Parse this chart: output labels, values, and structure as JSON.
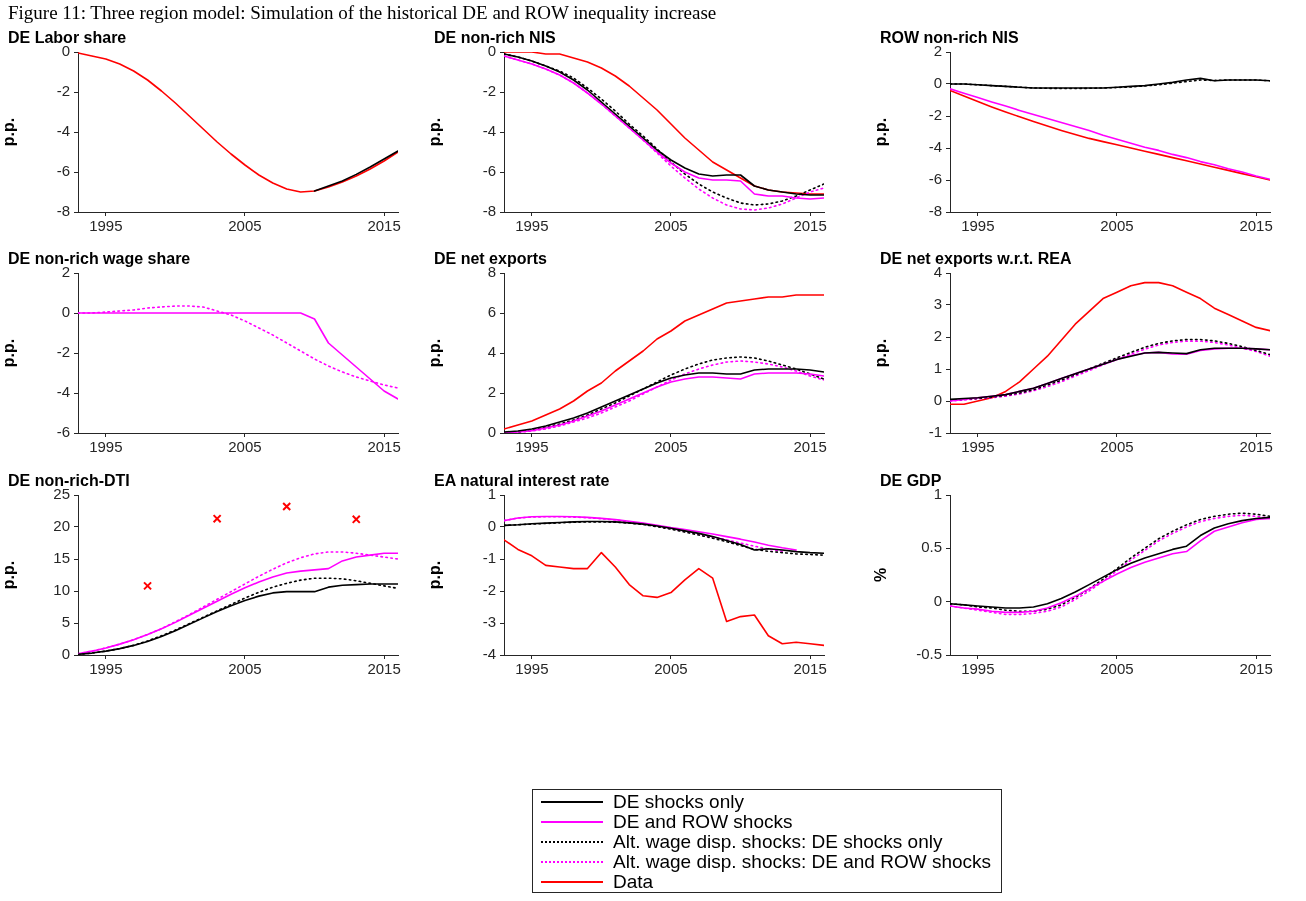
{
  "chart_data": [
    {
      "type": "line",
      "title": "DE Labor share",
      "ylabel": "p.p.",
      "annotations": [
        "Figure 11: Three region model: Simulation of the historical DE and ROW inequality increase"
      ],
      "x": [
        1993,
        1994,
        1995,
        1996,
        1997,
        1998,
        1999,
        2000,
        2001,
        2002,
        2003,
        2004,
        2005,
        2006,
        2007,
        2008,
        2009,
        2010,
        2011,
        2012,
        2013,
        2014,
        2015,
        2016
      ],
      "xlim": [
        1993,
        2016
      ],
      "xticks": [
        1995,
        2005,
        2015
      ],
      "ylim": [
        -8,
        0
      ],
      "yticks": [
        -8,
        -6,
        -4,
        -2,
        0
      ],
      "series": [
        {
          "color": "#000000",
          "values": [
            null,
            null,
            null,
            null,
            null,
            null,
            null,
            null,
            null,
            null,
            null,
            null,
            null,
            null,
            null,
            null,
            null,
            -6.95,
            -6.7,
            -6.45,
            -6.12,
            -5.75,
            -5.35,
            -4.95
          ]
        },
        {
          "color": "#ff0000",
          "values": [
            -0.05,
            -0.2,
            -0.35,
            -0.6,
            -0.95,
            -1.4,
            -1.95,
            -2.55,
            -3.2,
            -3.85,
            -4.5,
            -5.1,
            -5.65,
            -6.15,
            -6.55,
            -6.85,
            -7.0,
            -6.95,
            -6.75,
            -6.5,
            -6.2,
            -5.85,
            -5.45,
            -5.0
          ]
        }
      ]
    },
    {
      "type": "line",
      "title": "DE non-rich NIS",
      "ylabel": "p.p.",
      "x": [
        1993,
        1994,
        1995,
        1996,
        1997,
        1998,
        1999,
        2000,
        2001,
        2002,
        2003,
        2004,
        2005,
        2006,
        2007,
        2008,
        2009,
        2010,
        2011,
        2012,
        2013,
        2014,
        2015,
        2016
      ],
      "xlim": [
        1993,
        2016
      ],
      "xticks": [
        1995,
        2005,
        2015
      ],
      "ylim": [
        -8,
        0
      ],
      "yticks": [
        -8,
        -6,
        -4,
        -2,
        0
      ],
      "series": [
        {
          "color": "#000000",
          "values": [
            -0.1,
            -0.25,
            -0.45,
            -0.7,
            -1.0,
            -1.4,
            -1.9,
            -2.5,
            -3.1,
            -3.7,
            -4.3,
            -4.9,
            -5.4,
            -5.8,
            -6.1,
            -6.2,
            -6.15,
            -6.15,
            -6.7,
            -6.9,
            -7.0,
            -7.1,
            -7.15,
            -7.15
          ]
        },
        {
          "color": "#ff00ff",
          "values": [
            -0.2,
            -0.4,
            -0.6,
            -0.85,
            -1.15,
            -1.55,
            -2.05,
            -2.6,
            -3.2,
            -3.8,
            -4.4,
            -5.0,
            -5.55,
            -6.0,
            -6.3,
            -6.4,
            -6.4,
            -6.45,
            -7.1,
            -7.2,
            -7.2,
            -7.3,
            -7.35,
            -7.3
          ]
        },
        {
          "color": "#000000",
          "line_style": "dotted",
          "values": [
            -0.1,
            -0.25,
            -0.45,
            -0.7,
            -0.95,
            -1.3,
            -1.8,
            -2.35,
            -2.95,
            -3.6,
            -4.2,
            -4.85,
            -5.5,
            -6.1,
            -6.6,
            -7.0,
            -7.3,
            -7.55,
            -7.65,
            -7.6,
            -7.45,
            -7.2,
            -6.9,
            -6.6
          ]
        },
        {
          "color": "#ff00ff",
          "line_style": "dotted",
          "values": [
            -0.2,
            -0.4,
            -0.6,
            -0.85,
            -1.15,
            -1.55,
            -2.05,
            -2.6,
            -3.2,
            -3.8,
            -4.4,
            -5.05,
            -5.7,
            -6.3,
            -6.85,
            -7.3,
            -7.65,
            -7.85,
            -7.9,
            -7.8,
            -7.6,
            -7.3,
            -7.0,
            -6.8
          ]
        },
        {
          "color": "#ff0000",
          "values": [
            0,
            0,
            0,
            -0.1,
            -0.1,
            -0.3,
            -0.5,
            -0.8,
            -1.2,
            -1.7,
            -2.3,
            -2.9,
            -3.6,
            -4.3,
            -4.9,
            -5.5,
            -5.9,
            -6.3,
            -6.7,
            -6.9,
            -7.0,
            -7.05,
            -7.1,
            -7.1
          ]
        }
      ]
    },
    {
      "type": "line",
      "title": "ROW non-rich NIS",
      "ylabel": "p.p.",
      "x": [
        1993,
        1994,
        1995,
        1996,
        1997,
        1998,
        1999,
        2000,
        2001,
        2002,
        2003,
        2004,
        2005,
        2006,
        2007,
        2008,
        2009,
        2010,
        2011,
        2012,
        2013,
        2014,
        2015,
        2016
      ],
      "xlim": [
        1993,
        2016
      ],
      "xticks": [
        1995,
        2005,
        2015
      ],
      "ylim": [
        -8,
        2
      ],
      "yticks": [
        -8,
        -6,
        -4,
        -2,
        0,
        2
      ],
      "series": [
        {
          "color": "#000000",
          "line_style": "dotted",
          "values": [
            0,
            0,
            -0.05,
            -0.1,
            -0.15,
            -0.2,
            -0.25,
            -0.27,
            -0.28,
            -0.28,
            -0.27,
            -0.25,
            -0.22,
            -0.18,
            -0.12,
            -0.05,
            0.05,
            0.15,
            0.25,
            0.22,
            0.25,
            0.25,
            0.25,
            0.2
          ]
        },
        {
          "color": "#000000",
          "values": [
            0,
            0,
            -0.05,
            -0.1,
            -0.15,
            -0.2,
            -0.25,
            -0.25,
            -0.25,
            -0.25,
            -0.25,
            -0.25,
            -0.2,
            -0.15,
            -0.1,
            0,
            0.1,
            0.25,
            0.35,
            0.2,
            0.25,
            0.25,
            0.25,
            0.2
          ]
        },
        {
          "color": "#ff00ff",
          "values": [
            -0.3,
            -0.58,
            -0.85,
            -1.12,
            -1.38,
            -1.65,
            -1.9,
            -2.15,
            -2.4,
            -2.65,
            -2.9,
            -3.2,
            -3.45,
            -3.7,
            -3.95,
            -4.15,
            -4.4,
            -4.6,
            -4.85,
            -5.05,
            -5.3,
            -5.5,
            -5.75,
            -5.95
          ]
        },
        {
          "color": "#ff0000",
          "values": [
            -0.4,
            -0.75,
            -1.1,
            -1.43,
            -1.75,
            -2.05,
            -2.35,
            -2.63,
            -2.9,
            -3.15,
            -3.4,
            -3.6,
            -3.8,
            -4.0,
            -4.2,
            -4.4,
            -4.6,
            -4.8,
            -5.0,
            -5.2,
            -5.4,
            -5.6,
            -5.8,
            -6.0
          ]
        }
      ]
    },
    {
      "type": "line",
      "title": "DE non-rich wage share",
      "ylabel": "p.p.",
      "x": [
        1993,
        1994,
        1995,
        1996,
        1997,
        1998,
        1999,
        2000,
        2001,
        2002,
        2003,
        2004,
        2005,
        2006,
        2007,
        2008,
        2009,
        2010,
        2011,
        2012,
        2013,
        2014,
        2015,
        2016
      ],
      "xlim": [
        1993,
        2016
      ],
      "xticks": [
        1995,
        2005,
        2015
      ],
      "ylim": [
        -6,
        2
      ],
      "yticks": [
        -6,
        -4,
        -2,
        0,
        2
      ],
      "series": [
        {
          "color": "#ff00ff",
          "line_style": "dotted",
          "values": [
            0,
            0,
            0.05,
            0.1,
            0.15,
            0.25,
            0.3,
            0.35,
            0.35,
            0.3,
            0.1,
            -0.1,
            -0.4,
            -0.75,
            -1.1,
            -1.5,
            -1.9,
            -2.3,
            -2.65,
            -2.95,
            -3.2,
            -3.4,
            -3.6,
            -3.75
          ]
        },
        {
          "color": "#ff00ff",
          "values": [
            0,
            0,
            0,
            0,
            0,
            0,
            0,
            0,
            0,
            0,
            0,
            0,
            0,
            0,
            0,
            0,
            0,
            -0.3,
            -1.5,
            -2.1,
            -2.7,
            -3.3,
            -3.9,
            -4.3
          ]
        }
      ]
    },
    {
      "type": "line",
      "title": "DE net exports",
      "ylabel": "p.p.",
      "x": [
        1993,
        1994,
        1995,
        1996,
        1997,
        1998,
        1999,
        2000,
        2001,
        2002,
        2003,
        2004,
        2005,
        2006,
        2007,
        2008,
        2009,
        2010,
        2011,
        2012,
        2013,
        2014,
        2015,
        2016
      ],
      "xlim": [
        1993,
        2016
      ],
      "xticks": [
        1995,
        2005,
        2015
      ],
      "ylim": [
        0,
        8
      ],
      "yticks": [
        0,
        2,
        4,
        6,
        8
      ],
      "series": [
        {
          "color": "#000000",
          "values": [
            0.05,
            0.1,
            0.2,
            0.35,
            0.55,
            0.75,
            1.0,
            1.3,
            1.6,
            1.9,
            2.2,
            2.5,
            2.75,
            2.9,
            3.0,
            3.0,
            2.95,
            2.95,
            3.15,
            3.2,
            3.2,
            3.2,
            3.15,
            3.05
          ]
        },
        {
          "color": "#ff00ff",
          "values": [
            0.0,
            0.05,
            0.12,
            0.25,
            0.4,
            0.6,
            0.85,
            1.1,
            1.4,
            1.7,
            2.0,
            2.3,
            2.55,
            2.7,
            2.8,
            2.8,
            2.75,
            2.7,
            2.95,
            3.0,
            3.0,
            3.0,
            2.95,
            2.85
          ]
        },
        {
          "color": "#000000",
          "line_style": "dotted",
          "values": [
            0.0,
            0.05,
            0.15,
            0.3,
            0.45,
            0.65,
            0.9,
            1.2,
            1.5,
            1.85,
            2.2,
            2.55,
            2.9,
            3.2,
            3.45,
            3.65,
            3.75,
            3.8,
            3.75,
            3.6,
            3.4,
            3.2,
            2.95,
            2.7
          ]
        },
        {
          "color": "#ff00ff",
          "line_style": "dotted",
          "values": [
            0.0,
            0.03,
            0.1,
            0.2,
            0.35,
            0.55,
            0.75,
            1.0,
            1.3,
            1.6,
            1.95,
            2.3,
            2.65,
            2.95,
            3.2,
            3.4,
            3.55,
            3.6,
            3.55,
            3.45,
            3.3,
            3.1,
            2.85,
            2.65
          ]
        },
        {
          "color": "#ff0000",
          "values": [
            0.2,
            0.4,
            0.6,
            0.9,
            1.2,
            1.6,
            2.1,
            2.5,
            3.1,
            3.6,
            4.1,
            4.7,
            5.1,
            5.6,
            5.9,
            6.2,
            6.5,
            6.6,
            6.7,
            6.8,
            6.8,
            6.9,
            6.9,
            6.9
          ]
        }
      ]
    },
    {
      "type": "line",
      "title": "DE net exports w.r.t. REA",
      "ylabel": "p.p.",
      "x": [
        1993,
        1994,
        1995,
        1996,
        1997,
        1998,
        1999,
        2000,
        2001,
        2002,
        2003,
        2004,
        2005,
        2006,
        2007,
        2008,
        2009,
        2010,
        2011,
        2012,
        2013,
        2014,
        2015,
        2016
      ],
      "xlim": [
        1993,
        2016
      ],
      "xticks": [
        1995,
        2005,
        2015
      ],
      "ylim": [
        -1,
        4
      ],
      "yticks": [
        -1,
        0,
        1,
        2,
        3,
        4
      ],
      "series": [
        {
          "color": "#000000",
          "values": [
            0.05,
            0.08,
            0.1,
            0.15,
            0.2,
            0.3,
            0.4,
            0.55,
            0.7,
            0.85,
            1.0,
            1.15,
            1.3,
            1.4,
            1.5,
            1.52,
            1.5,
            1.48,
            1.6,
            1.65,
            1.65,
            1.65,
            1.63,
            1.6
          ]
        },
        {
          "color": "#ff00ff",
          "values": [
            0.0,
            0.05,
            0.1,
            0.15,
            0.2,
            0.3,
            0.4,
            0.55,
            0.7,
            0.85,
            1.0,
            1.15,
            1.3,
            1.42,
            1.5,
            1.52,
            1.47,
            1.46,
            1.58,
            1.63,
            1.65,
            1.65,
            1.63,
            1.6
          ]
        },
        {
          "color": "#000000",
          "line_style": "dotted",
          "values": [
            0.03,
            0.05,
            0.08,
            0.12,
            0.18,
            0.25,
            0.35,
            0.5,
            0.65,
            0.82,
            1.0,
            1.18,
            1.35,
            1.52,
            1.68,
            1.8,
            1.88,
            1.92,
            1.92,
            1.88,
            1.8,
            1.7,
            1.58,
            1.45
          ]
        },
        {
          "color": "#ff00ff",
          "line_style": "dotted",
          "values": [
            0.0,
            0.03,
            0.07,
            0.1,
            0.15,
            0.22,
            0.32,
            0.45,
            0.6,
            0.78,
            0.95,
            1.13,
            1.3,
            1.47,
            1.62,
            1.75,
            1.83,
            1.87,
            1.87,
            1.83,
            1.75,
            1.65,
            1.55,
            1.4
          ]
        },
        {
          "color": "#ff0000",
          "values": [
            -0.1,
            -0.1,
            0.0,
            0.1,
            0.3,
            0.6,
            1.0,
            1.4,
            1.9,
            2.4,
            2.8,
            3.2,
            3.4,
            3.6,
            3.7,
            3.7,
            3.6,
            3.4,
            3.2,
            2.9,
            2.7,
            2.5,
            2.3,
            2.2
          ]
        }
      ]
    },
    {
      "type": "line",
      "title": "DE non-rich-DTI",
      "ylabel": "p.p.",
      "x": [
        1993,
        1994,
        1995,
        1996,
        1997,
        1998,
        1999,
        2000,
        2001,
        2002,
        2003,
        2004,
        2005,
        2006,
        2007,
        2008,
        2009,
        2010,
        2011,
        2012,
        2013,
        2014,
        2015,
        2016
      ],
      "xlim": [
        1993,
        2016
      ],
      "xticks": [
        1995,
        2005,
        2015
      ],
      "ylim": [
        0,
        25
      ],
      "yticks": [
        0,
        5,
        10,
        15,
        20,
        25
      ],
      "series": [
        {
          "color": "#000000",
          "values": [
            0.1,
            0.3,
            0.6,
            1.0,
            1.5,
            2.1,
            2.9,
            3.8,
            4.8,
            5.8,
            6.8,
            7.7,
            8.5,
            9.2,
            9.7,
            9.9,
            9.9,
            9.9,
            10.6,
            10.9,
            11.0,
            11.1,
            11.1,
            11.1
          ]
        },
        {
          "color": "#ff00ff",
          "values": [
            0.2,
            0.6,
            1.1,
            1.7,
            2.4,
            3.2,
            4.1,
            5.1,
            6.2,
            7.3,
            8.4,
            9.5,
            10.5,
            11.4,
            12.2,
            12.8,
            13.1,
            13.3,
            13.5,
            14.7,
            15.3,
            15.6,
            15.9,
            15.9
          ]
        },
        {
          "color": "#000000",
          "line_style": "dotted",
          "values": [
            0.1,
            0.3,
            0.6,
            1.0,
            1.5,
            2.2,
            3.0,
            3.9,
            4.9,
            5.9,
            6.9,
            7.9,
            8.9,
            9.8,
            10.6,
            11.2,
            11.7,
            12.0,
            12.0,
            11.9,
            11.6,
            11.2,
            10.8,
            10.4
          ]
        },
        {
          "color": "#ff00ff",
          "line_style": "dotted",
          "values": [
            0.2,
            0.6,
            1.1,
            1.7,
            2.4,
            3.2,
            4.1,
            5.2,
            6.3,
            7.5,
            8.7,
            9.9,
            11.1,
            12.3,
            13.4,
            14.4,
            15.2,
            15.8,
            16.1,
            16.1,
            15.9,
            15.6,
            15.3,
            15.0
          ]
        },
        {
          "type": "scatter",
          "marker": "cross",
          "color": "#ff0000",
          "x": [
            1998,
            2003,
            2008,
            2013
          ],
          "values": [
            10.8,
            21.3,
            23.2,
            21.2
          ]
        }
      ]
    },
    {
      "type": "line",
      "title": "EA natural interest rate",
      "ylabel": "p.p.",
      "legend": "bottom",
      "x": [
        1993,
        1994,
        1995,
        1996,
        1997,
        1998,
        1999,
        2000,
        2001,
        2002,
        2003,
        2004,
        2005,
        2006,
        2007,
        2008,
        2009,
        2010,
        2011,
        2012,
        2013,
        2014,
        2015,
        2016
      ],
      "xlim": [
        1993,
        2016
      ],
      "xticks": [
        1995,
        2005,
        2015
      ],
      "ylim": [
        -4,
        1
      ],
      "yticks": [
        -4,
        -3,
        -2,
        -1,
        0,
        1
      ],
      "series": [
        {
          "name": "DE shocks only",
          "color": "#000000",
          "values": [
            0.05,
            0.07,
            0.1,
            0.12,
            0.14,
            0.16,
            0.17,
            0.17,
            0.16,
            0.13,
            0.09,
            0.03,
            -0.04,
            -0.12,
            -0.2,
            -0.3,
            -0.42,
            -0.55,
            -0.72,
            -0.68,
            -0.72,
            -0.77,
            -0.8,
            -0.82
          ]
        },
        {
          "name": "DE and ROW shocks",
          "color": "#ff00ff",
          "values": [
            0.2,
            0.28,
            0.32,
            0.33,
            0.33,
            0.32,
            0.3,
            0.27,
            0.23,
            0.18,
            0.12,
            0.05,
            -0.02,
            -0.08,
            -0.15,
            -0.22,
            -0.3,
            -0.38,
            -0.47,
            -0.57,
            -0.65,
            -0.72,
            null,
            null
          ]
        },
        {
          "name": "Alt. wage disp. shocks: DE shocks only",
          "color": "#000000",
          "line_style": "dotted",
          "values": [
            0.05,
            0.07,
            0.09,
            0.11,
            0.13,
            0.15,
            0.16,
            0.16,
            0.15,
            0.12,
            0.08,
            0.01,
            -0.07,
            -0.16,
            -0.25,
            -0.35,
            -0.46,
            -0.58,
            -0.7,
            -0.76,
            -0.8,
            -0.84,
            -0.86,
            -0.88
          ]
        },
        {
          "name": "Alt. wage disp. shocks: DE and ROW shocks",
          "color": "#ff00ff",
          "line_style": "dotted",
          "values": [
            0.2,
            0.28,
            0.31,
            0.32,
            0.32,
            0.31,
            0.29,
            0.26,
            0.22,
            0.16,
            0.1,
            0.03,
            -0.05,
            -0.13,
            -0.22,
            -0.31,
            -0.4,
            -0.5,
            -0.6,
            -0.69,
            -0.76,
            null,
            null,
            null
          ]
        },
        {
          "name": "Data",
          "color": "#ff0000",
          "values": [
            -0.4,
            -0.7,
            -0.9,
            -1.2,
            -1.25,
            -1.3,
            -1.3,
            -0.8,
            -1.25,
            -1.8,
            -2.15,
            -2.2,
            -2.05,
            -1.65,
            -1.3,
            -1.6,
            -2.95,
            -2.8,
            -2.75,
            -3.4,
            -3.65,
            -3.6,
            -3.65,
            -3.7
          ]
        }
      ]
    },
    {
      "type": "line",
      "title": "DE GDP",
      "ylabel": "%",
      "x": [
        1993,
        1994,
        1995,
        1996,
        1997,
        1998,
        1999,
        2000,
        2001,
        2002,
        2003,
        2004,
        2005,
        2006,
        2007,
        2008,
        2009,
        2010,
        2011,
        2012,
        2013,
        2014,
        2015,
        2016
      ],
      "xlim": [
        1993,
        2016
      ],
      "xticks": [
        1995,
        2005,
        2015
      ],
      "ylim": [
        -0.5,
        1
      ],
      "yticks": [
        -0.5,
        0,
        0.5,
        1
      ],
      "series": [
        {
          "color": "#000000",
          "values": [
            -0.02,
            -0.03,
            -0.04,
            -0.05,
            -0.06,
            -0.06,
            -0.05,
            -0.02,
            0.03,
            0.09,
            0.16,
            0.23,
            0.3,
            0.36,
            0.41,
            0.45,
            0.49,
            0.52,
            0.62,
            0.69,
            0.73,
            0.76,
            0.78,
            0.79
          ]
        },
        {
          "color": "#ff00ff",
          "values": [
            -0.04,
            -0.06,
            -0.07,
            -0.09,
            -0.1,
            -0.1,
            -0.09,
            -0.06,
            -0.01,
            0.05,
            0.12,
            0.19,
            0.26,
            0.32,
            0.37,
            0.41,
            0.45,
            0.47,
            0.57,
            0.66,
            0.7,
            0.74,
            0.77,
            0.78
          ]
        },
        {
          "color": "#000000",
          "line_style": "dotted",
          "values": [
            -0.02,
            -0.03,
            -0.05,
            -0.06,
            -0.08,
            -0.09,
            -0.09,
            -0.07,
            -0.03,
            0.04,
            0.12,
            0.21,
            0.31,
            0.41,
            0.5,
            0.59,
            0.66,
            0.72,
            0.77,
            0.8,
            0.82,
            0.83,
            0.82,
            0.8
          ]
        },
        {
          "color": "#ff00ff",
          "line_style": "dotted",
          "values": [
            -0.04,
            -0.06,
            -0.08,
            -0.1,
            -0.12,
            -0.12,
            -0.11,
            -0.09,
            -0.05,
            0.02,
            0.1,
            0.19,
            0.29,
            0.39,
            0.48,
            0.57,
            0.64,
            0.7,
            0.75,
            0.78,
            0.8,
            0.81,
            0.8,
            0.78
          ]
        }
      ]
    }
  ]
}
